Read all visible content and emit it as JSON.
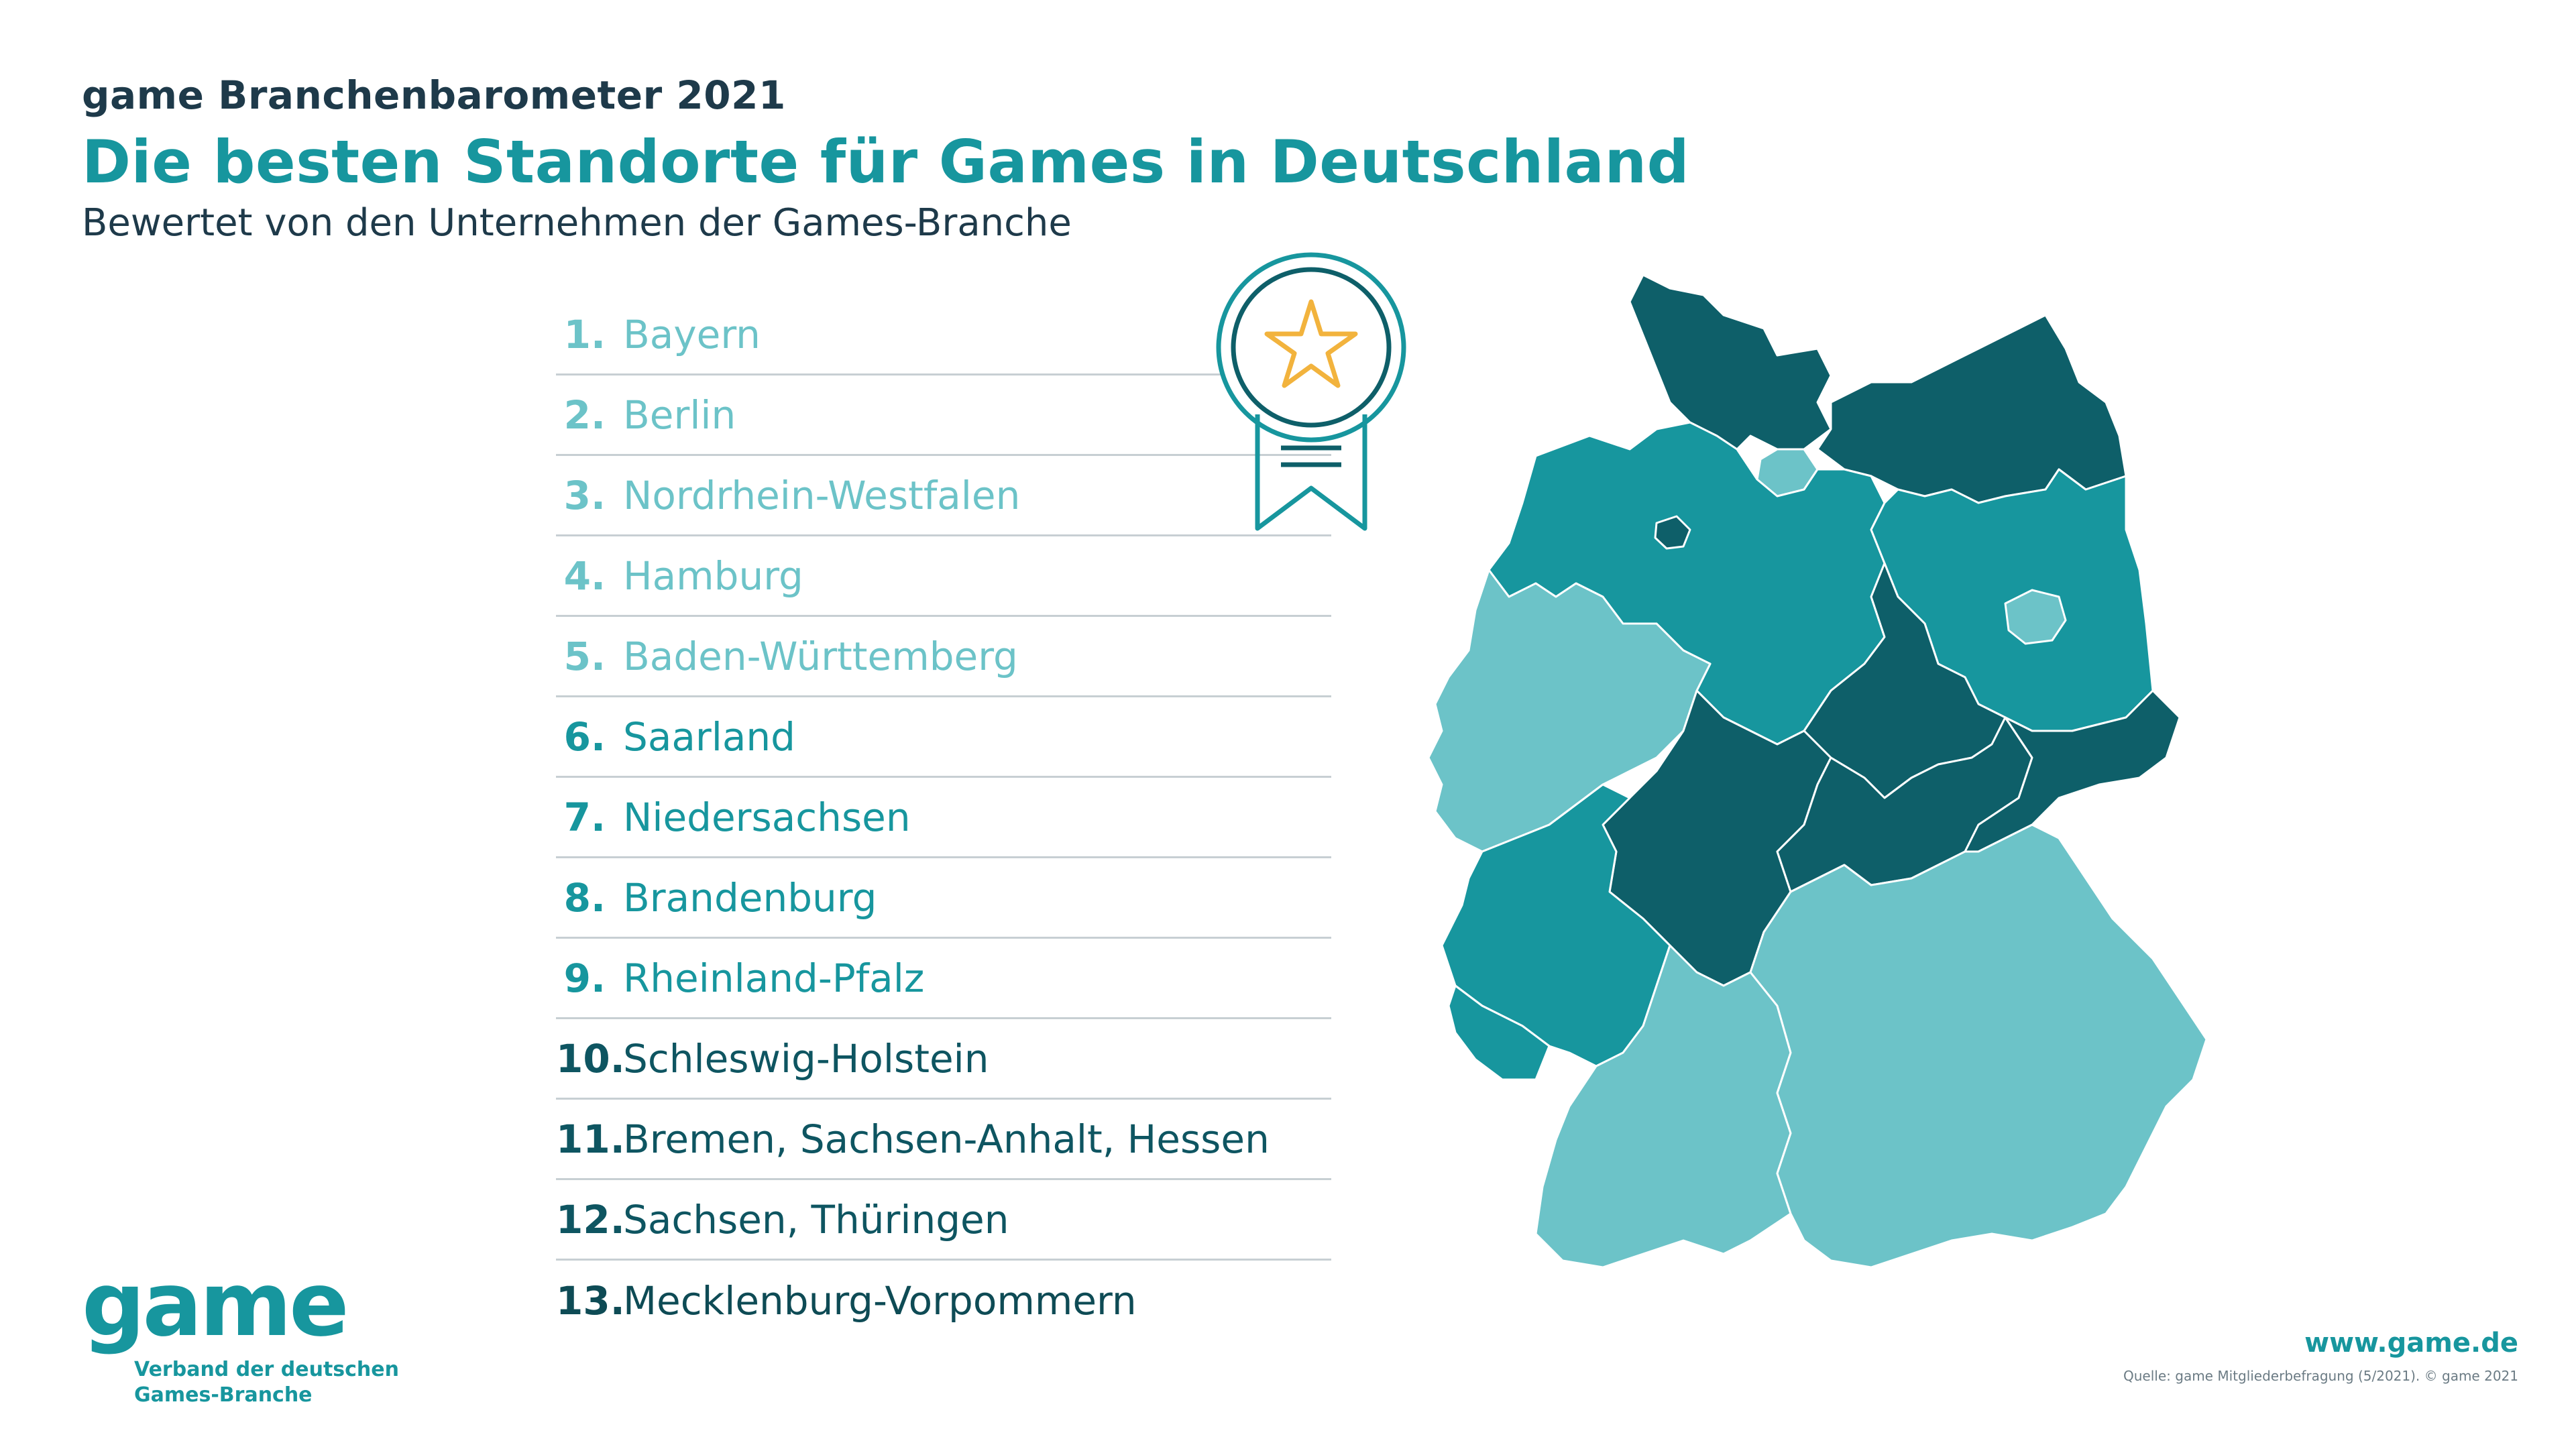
{
  "header": {
    "kicker": "game Branchenbarometer 2021",
    "title": "Die besten Standorte für Games in Deutschland",
    "subtitle": "Bewertet von den Unternehmen der Games-Branche"
  },
  "ranking": [
    {
      "rank": "1.",
      "name": "Bayern"
    },
    {
      "rank": "2.",
      "name": "Berlin"
    },
    {
      "rank": "3.",
      "name": "Nordrhein-Westfalen"
    },
    {
      "rank": "4.",
      "name": "Hamburg"
    },
    {
      "rank": "5.",
      "name": "Baden-Württemberg"
    },
    {
      "rank": "6.",
      "name": "Saarland"
    },
    {
      "rank": "7.",
      "name": "Niedersachsen"
    },
    {
      "rank": "8.",
      "name": "Brandenburg"
    },
    {
      "rank": "9.",
      "name": "Rheinland-Pfalz"
    },
    {
      "rank": "10.",
      "name": "Schleswig-Holstein"
    },
    {
      "rank": "11.",
      "name": "Bremen, Sachsen-Anhalt, Hessen"
    },
    {
      "rank": "12.",
      "name": "Sachsen, Thüringen"
    },
    {
      "rank": "13.",
      "name": "Mecklenburg-Vorpommern"
    }
  ],
  "colors": {
    "tier_light": "#6cc3c8",
    "tier_mid": "#17969e",
    "tier_dark": "#0e5f69",
    "text_dark": "#1e3a4a"
  },
  "map_tiers": {
    "Bayern": "light",
    "Berlin": "light",
    "Nordrhein-Westfalen": "light",
    "Hamburg": "light",
    "Baden-Württemberg": "light",
    "Saarland": "mid",
    "Niedersachsen": "mid",
    "Brandenburg": "mid",
    "Rheinland-Pfalz": "mid",
    "Schleswig-Holstein": "dark",
    "Bremen": "dark",
    "Sachsen-Anhalt": "dark",
    "Hessen": "dark",
    "Sachsen": "dark",
    "Thüringen": "dark",
    "Mecklenburg-Vorpommern": "dark"
  },
  "badge_icon": "award-ribbon-star-icon",
  "logo": {
    "word": "game",
    "tag_line1": "Verband der deutschen",
    "tag_line2": "Games-Branche"
  },
  "footer": {
    "site": "www.game.de",
    "source": "Quelle: game Mitgliederbefragung (5/2021). © game 2021"
  }
}
